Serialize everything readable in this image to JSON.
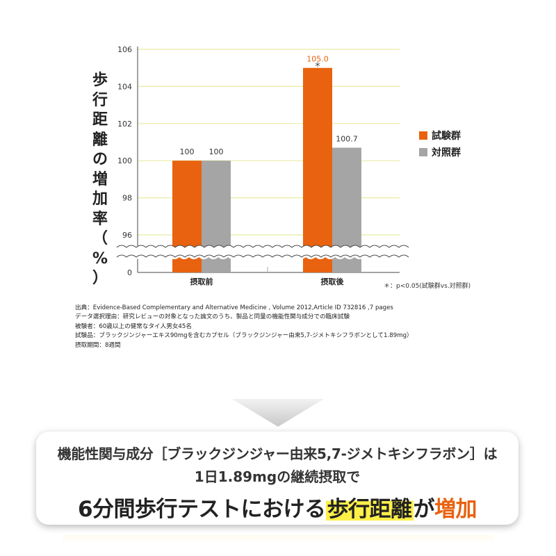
{
  "chart_data": {
    "type": "bar",
    "categories": [
      "摂取前",
      "摂取後"
    ],
    "series": [
      {
        "name": "試験群",
        "color": "#e8620f",
        "values": [
          100,
          105.0
        ],
        "labels": [
          "100",
          "105.0"
        ]
      },
      {
        "name": "対照群",
        "color": "#a5a5a5",
        "values": [
          100,
          100.7
        ],
        "labels": [
          "100",
          "100.7"
        ]
      }
    ],
    "yticks": [
      "106",
      "104",
      "102",
      "100",
      "98",
      "96",
      "0"
    ],
    "ylim": [
      96,
      106
    ],
    "axis_break": true,
    "grid": true,
    "ylabel": "歩行距離の増加率（%）",
    "significance": "＊",
    "significance_note": "＊：p<0.05(試験群vs.対照群)",
    "legend_position": "right"
  },
  "ylabel_chars": [
    "歩",
    "行",
    "距",
    "離",
    "の",
    "増",
    "加",
    "率",
    "（",
    "%",
    "）"
  ],
  "source": {
    "line1": "出典：Evidence-Based Complementary and Alternative Medicine , Volume 2012,Article ID 732816 ,7 pages",
    "line2": "データ選択理由：研究レビューの対象となった論文のうち、製品と同量の機能性関与成分での臨床試験",
    "line3": "被験者：60歳以上の健常なタイ人男女45名",
    "line4": "試験品：ブラックジンジャーエキス90mgを含むカプセル（ブラックジンジャー由来5,7-ジメトキシフラボンとして1.89mg）",
    "line5": "摂取期間：8週間"
  },
  "result": {
    "line1": "機能性関与成分［ブラックジンジャー由来5,7-ジメトキシフラボン］は",
    "line2": "1日1.89mgの継続摂取で",
    "line3_part1": "6分間歩行テストにおける",
    "line3_highlight1": "歩行距離",
    "line3_part2": "が",
    "line3_highlight2": "増加"
  },
  "colors": {
    "orange": "#e8620f",
    "gray": "#a5a5a5",
    "grid": "#e8eaa2"
  },
  "icons": {
    "arrow": "down-arrow-icon"
  }
}
